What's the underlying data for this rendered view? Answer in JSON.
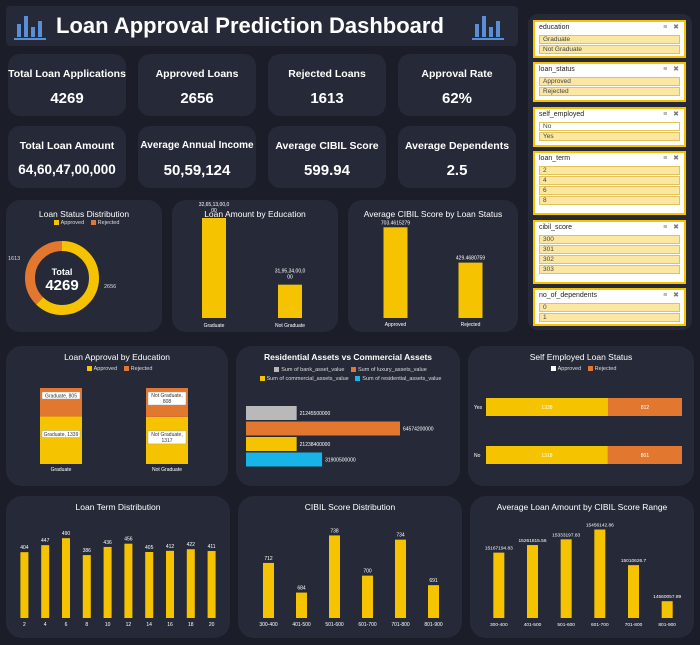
{
  "header": {
    "title": "Loan Approval Prediction Dashboard"
  },
  "colors": {
    "background": "#1b1e29",
    "card": "#262a38",
    "approved": "#f5c300",
    "rejected": "#e2772f",
    "grey": "#b9b9b9",
    "cyan": "#18b4e8"
  },
  "kpis": [
    {
      "label": "Total Loan Applications",
      "value": "4269"
    },
    {
      "label": "Approved Loans",
      "value": "2656"
    },
    {
      "label": "Rejected Loans",
      "value": "1613"
    },
    {
      "label": "Approval Rate",
      "value": "62%"
    },
    {
      "label": "Total Loan Amount",
      "value": "64,60,47,00,000"
    },
    {
      "label": "Average Annual Income",
      "value": "50,59,124"
    },
    {
      "label": "Average CIBIL Score",
      "value": "599.94"
    },
    {
      "label": "Average Dependents",
      "value": "2.5"
    }
  ],
  "slicers": [
    {
      "title": "education",
      "items": [
        "Graduate",
        "Not Graduate"
      ]
    },
    {
      "title": "loan_status",
      "items": [
        "Approved",
        "Rejected"
      ]
    },
    {
      "title": "self_employed",
      "items": [
        "No",
        "Yes"
      ]
    },
    {
      "title": "loan_term",
      "items": [
        "2",
        "4",
        "6",
        "8"
      ]
    },
    {
      "title": "cibil_score",
      "items": [
        "300",
        "301",
        "302",
        "303"
      ]
    },
    {
      "title": "no_of_dependents",
      "items": [
        "0",
        "1"
      ]
    }
  ],
  "charts": {
    "loan_status": {
      "title": "Loan Status Distribution",
      "legend": [
        "Approved",
        "Rejected"
      ],
      "center_label": "Total",
      "center_value": "4269",
      "chart_data": {
        "type": "pie",
        "categories": [
          "Approved",
          "Rejected"
        ],
        "values": [
          2656,
          1613
        ],
        "value_labels": [
          "2656",
          "1613"
        ]
      }
    },
    "amount_by_education": {
      "title": "Loan Amount by Education",
      "chart_data": {
        "type": "bar",
        "categories": [
          "Graduate",
          "Not Graduate"
        ],
        "values": [
          32.65,
          31.95
        ],
        "value_labels": [
          "32,65,13,00,000",
          "31,95,34,00,000"
        ]
      }
    },
    "cibil_by_status": {
      "title": "Average CIBIL Score by Loan Status",
      "chart_data": {
        "type": "bar",
        "categories": [
          "Approved",
          "Rejected"
        ],
        "values": [
          703.4615,
          429.468
        ],
        "value_labels": [
          "703.4615279",
          "429.4680759"
        ]
      }
    },
    "approval_by_education": {
      "title": "Loan Approval by Education",
      "legend": [
        "Approved",
        "Rejected"
      ],
      "chart_data": {
        "type": "bar",
        "stacked": true,
        "categories": [
          "Graduate",
          "Not Graduate"
        ],
        "series": [
          {
            "name": "Approved",
            "values": [
              1339,
              1317
            ]
          },
          {
            "name": "Rejected",
            "values": [
              805,
              808
            ]
          }
        ],
        "value_labels": {
          "Approved": [
            "Graduate, 1339",
            "Not Graduate, 1317"
          ],
          "Rejected": [
            "Graduate, 805",
            "Not Graduate, 808"
          ]
        }
      }
    },
    "assets": {
      "title": "Residential Assets vs Commercial Assets",
      "legend": [
        "Sum of bank_asset_value",
        "Sum of luxury_assets_value",
        "Sum of commercial_assets_value",
        "Sum of residential_assets_value"
      ],
      "chart_data": {
        "type": "bar",
        "orientation": "horizontal",
        "categories": [
          "Sum of bank_asset_value",
          "Sum of luxury_assets_value",
          "Sum of commercial_assets_value",
          "Sum of residential_assets_value"
        ],
        "values": [
          21245500000,
          64574200000,
          21238400000,
          31900500000
        ],
        "value_labels": [
          "21245500000",
          "64574200000",
          "21238400000",
          "31900500000"
        ]
      }
    },
    "self_employed": {
      "title": "Self Employed Loan Status",
      "legend": [
        "Approved",
        "Rejected"
      ],
      "chart_data": {
        "type": "bar",
        "orientation": "horizontal",
        "stacked": true,
        "categories": [
          "Yes",
          "No"
        ],
        "series": [
          {
            "name": "Approved",
            "values": [
              1338,
              1318
            ]
          },
          {
            "name": "Rejected",
            "values": [
              812,
              801
            ]
          }
        ]
      }
    },
    "loan_term": {
      "title": "Loan Term Distribution",
      "chart_data": {
        "type": "bar",
        "categories": [
          "2",
          "4",
          "6",
          "8",
          "10",
          "12",
          "14",
          "16",
          "18",
          "20"
        ],
        "values": [
          404,
          447,
          490,
          386,
          436,
          456,
          405,
          412,
          422,
          411
        ],
        "ylim": [
          0,
          540
        ]
      }
    },
    "cibil_distribution": {
      "title": "CIBIL Score Distribution",
      "chart_data": {
        "type": "bar",
        "categories": [
          "300-400",
          "401-500",
          "501-600",
          "601-700",
          "701-800",
          "801-900"
        ],
        "values": [
          712,
          684,
          738,
          700,
          734,
          691
        ],
        "ylim": [
          660,
          745
        ]
      }
    },
    "avg_amount_by_cibil": {
      "title": "Average Loan Amount by CIBIL Score Range",
      "chart_data": {
        "type": "bar",
        "categories": [
          "300-400",
          "401-500",
          "501-600",
          "601-700",
          "701-800",
          "801-900"
        ],
        "values": [
          15167194.83,
          15261815.56,
          15333197.83,
          15456142.86,
          15010626.7,
          14560057.89
        ],
        "value_labels": [
          "15167194.83",
          "15261815.56",
          "15333197.83",
          "15456142.86",
          "15010626.7",
          "14560057.89"
        ],
        "ylim": [
          14350000,
          15500000
        ]
      }
    }
  }
}
